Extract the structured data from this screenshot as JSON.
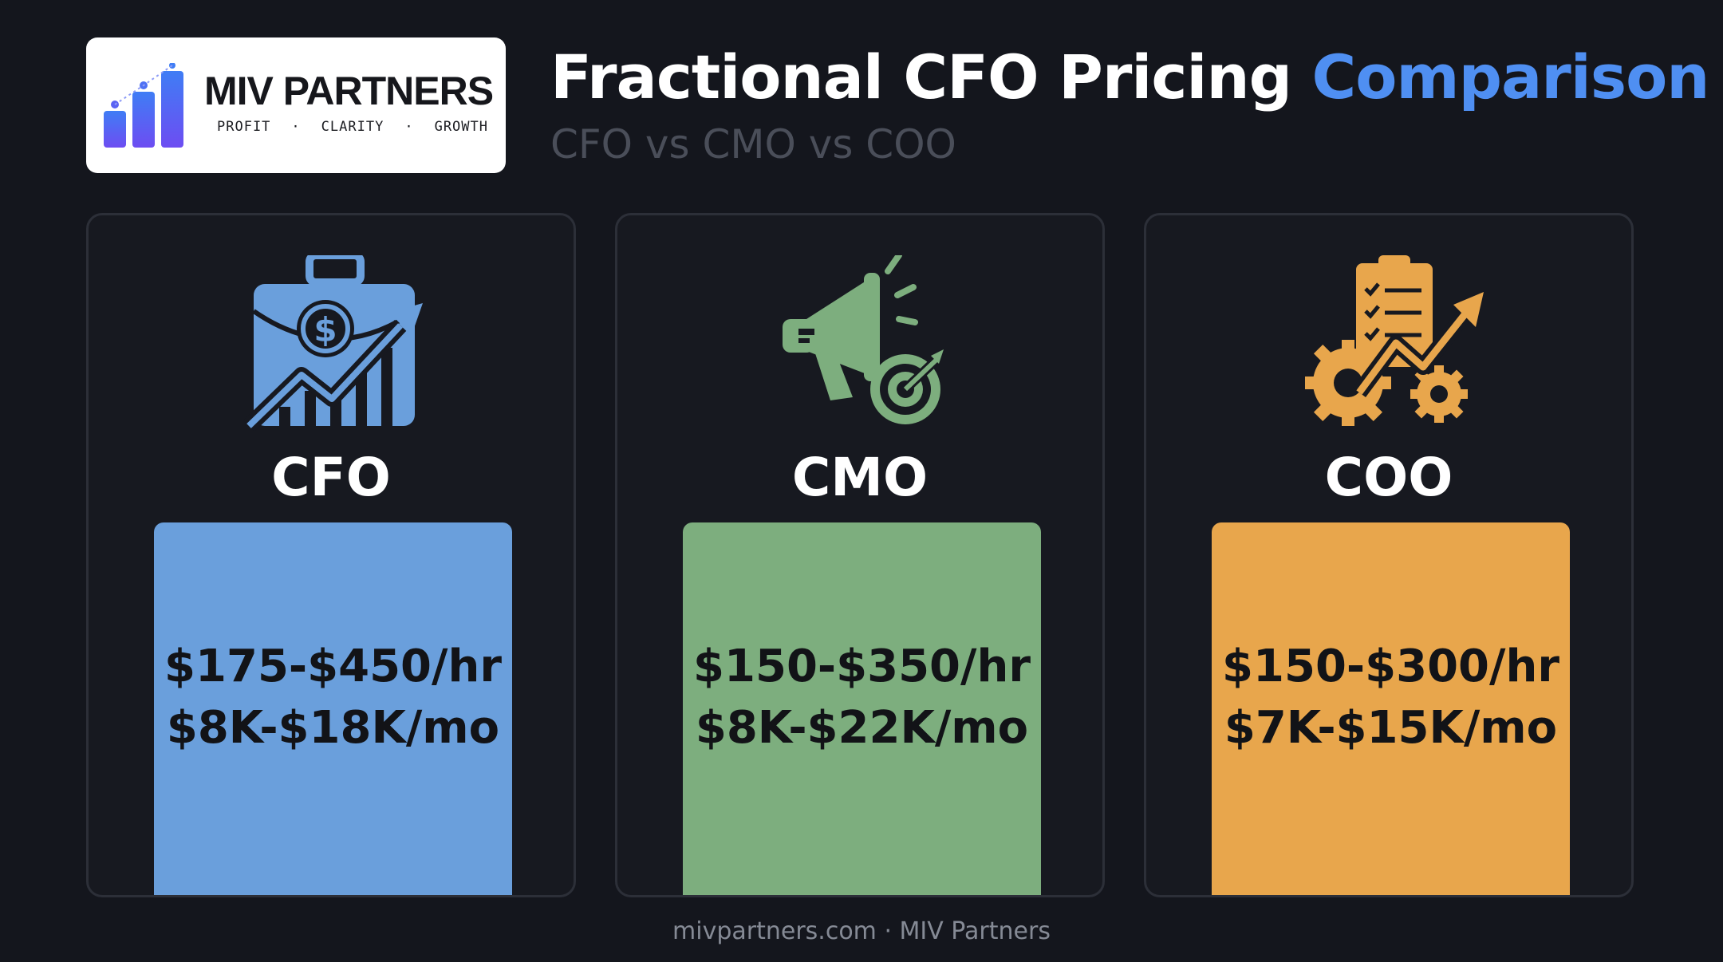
{
  "logo": {
    "name": "MIV PARTNERS",
    "tagline": [
      "PROFIT",
      "CLARITY",
      "GROWTH"
    ],
    "separator": "·"
  },
  "header": {
    "title_main": "Fractional CFO Pricing",
    "title_accent": "Comparison",
    "subtitle": "CFO vs CMO vs COO"
  },
  "colors": {
    "background": "#14161d",
    "accent": "#4f8ff2",
    "cfo": "#6a9fdc",
    "cmo": "#7dae7e",
    "coo": "#e8a64c"
  },
  "cards": [
    {
      "role": "CFO",
      "hourly": "$175-$450/hr",
      "monthly": "$8K-$18K/mo",
      "icon": "briefcase-growth-icon"
    },
    {
      "role": "CMO",
      "hourly": "$150-$350/hr",
      "monthly": "$8K-$22K/mo",
      "icon": "megaphone-target-icon"
    },
    {
      "role": "COO",
      "hourly": "$150-$300/hr",
      "monthly": "$7K-$15K/mo",
      "icon": "clipboard-gears-icon"
    }
  ],
  "footer": "mivpartners.com · MIV Partners"
}
